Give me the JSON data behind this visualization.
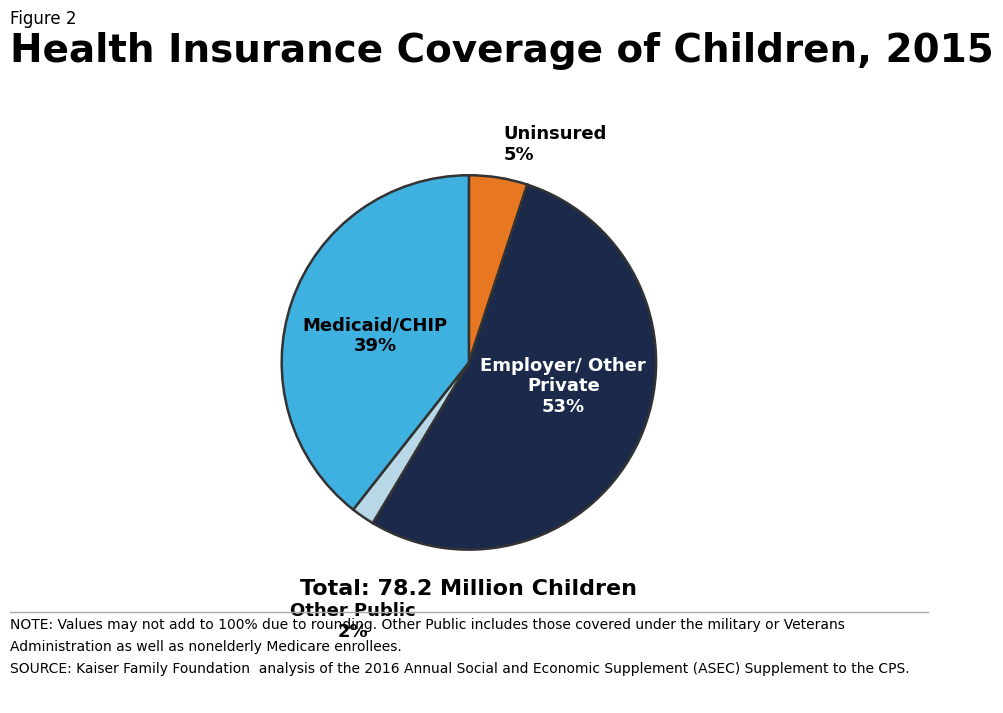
{
  "figure_label": "Figure 2",
  "title": "Health Insurance Coverage of Children, 2015",
  "slices": [
    {
      "label": "Employer/ Other\nPrivate",
      "pct": 53,
      "color": "#1b2a4a",
      "text_color": "white"
    },
    {
      "label": "Uninsured",
      "pct": 5,
      "color": "#e87722",
      "text_color": "black"
    },
    {
      "label": "Medicaid/CHIP",
      "pct": 39,
      "color": "#3eb1e0",
      "text_color": "black"
    },
    {
      "label": "Other Public",
      "pct": 2,
      "color": "#b8d8e8",
      "text_color": "black"
    }
  ],
  "total_text": "Total: 78.2 Million Children",
  "note_line1": "NOTE: Values may not add to 100% due to rounding. Other Public includes those covered under the military or Veterans",
  "note_line2": "Administration as well as nonelderly Medicare enrollees.",
  "note_line3": "SOURCE: Kaiser Family Foundation  analysis of the 2016 Annual Social and Economic Supplement (ASEC) Supplement to the CPS.",
  "background_color": "#ffffff",
  "title_fontsize": 28,
  "figure_label_fontsize": 12,
  "label_fontsize": 13,
  "total_fontsize": 16,
  "note_fontsize": 10,
  "kaiser_box_color": "#1b3a6b",
  "startangle": 79.6
}
